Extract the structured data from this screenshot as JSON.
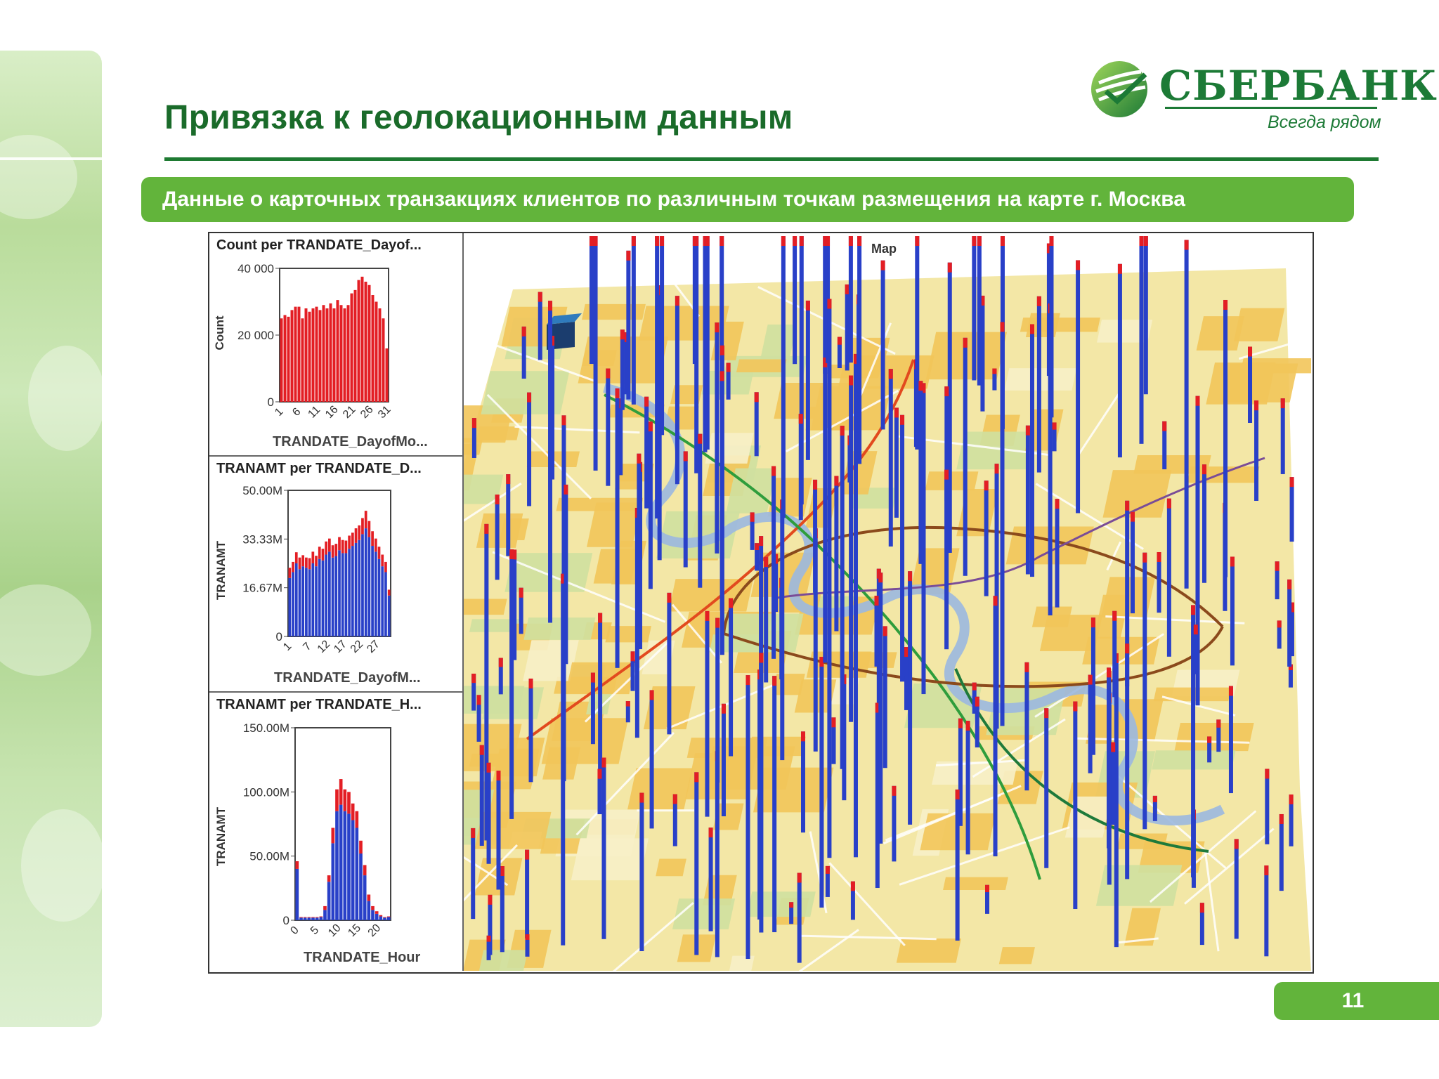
{
  "slide": {
    "title": "Привязка к геолокационным данным",
    "subtitle": "Данные о карточных транзакциях клиентов по различным точкам размещения на карте г. Москва",
    "page_number": "11"
  },
  "logo": {
    "name": "СБЕРБАНК",
    "tagline": "Всегда рядом"
  },
  "colors": {
    "brand_green": "#1e7a32",
    "banner_green": "#62b43b",
    "bar_red": "#e31e24",
    "bar_blue": "#2940c8"
  },
  "chart_data": [
    {
      "type": "bar",
      "title": "Count per TRANDATE_Dayof...",
      "xlabel": "TRANDATE_DayofMo...",
      "ylabel": "Count",
      "ylim": [
        0,
        40000
      ],
      "y_ticks": [
        "0",
        "20 000",
        "40 000"
      ],
      "x_ticks": [
        "1",
        "6",
        "11",
        "16",
        "21",
        "26",
        "31"
      ],
      "categories": [
        1,
        2,
        3,
        4,
        5,
        6,
        7,
        8,
        9,
        10,
        11,
        12,
        13,
        14,
        15,
        16,
        17,
        18,
        19,
        20,
        21,
        22,
        23,
        24,
        25,
        26,
        27,
        28,
        29,
        30,
        31
      ],
      "values": [
        25000,
        26000,
        25500,
        27500,
        28500,
        28500,
        25000,
        28000,
        27000,
        28000,
        28500,
        27500,
        29000,
        28000,
        29500,
        28000,
        30500,
        29000,
        28000,
        29000,
        32500,
        33500,
        36500,
        37500,
        36000,
        35000,
        32000,
        30000,
        28000,
        25000,
        16000
      ]
    },
    {
      "type": "bar",
      "title": "TRANAMT  per TRANDATE_D...",
      "xlabel": "TRANDATE_DayofM...",
      "ylabel": "TRANAMT",
      "ylim": [
        0,
        50000000
      ],
      "y_ticks": [
        "0",
        "16.67M",
        "33.33M",
        "50.00M"
      ],
      "x_ticks": [
        "1",
        "7",
        "12",
        "17",
        "22",
        "27"
      ],
      "categories": [
        1,
        2,
        3,
        4,
        5,
        6,
        7,
        8,
        9,
        10,
        11,
        12,
        13,
        14,
        15,
        16,
        17,
        18,
        19,
        20,
        21,
        22,
        23,
        24,
        25,
        26,
        27,
        28,
        29,
        30,
        31
      ],
      "series": [
        {
          "name": "blue",
          "values": [
            20000000,
            22000000,
            25000000,
            23000000,
            24000000,
            23500000,
            23000000,
            25000000,
            24000000,
            26500000,
            26000000,
            28000000,
            29000000,
            27000000,
            27500000,
            29500000,
            28500000,
            28500000,
            30000000,
            31000000,
            32000000,
            33000000,
            35000000,
            37000000,
            34000000,
            31000000,
            29000000,
            26500000,
            24000000,
            22000000,
            14000000
          ]
        },
        {
          "name": "red",
          "values": [
            3500000,
            3500000,
            3800000,
            4000000,
            3800000,
            3500000,
            3800000,
            4000000,
            3600000,
            4200000,
            4000000,
            4500000,
            4500000,
            4200000,
            4200000,
            4500000,
            4500000,
            4300000,
            4500000,
            4500000,
            5000000,
            5000000,
            5500000,
            6000000,
            5500000,
            5000000,
            4500000,
            4200000,
            4000000,
            3500000,
            2000000
          ]
        }
      ]
    },
    {
      "type": "bar",
      "title": "TRANAMT  per TRANDATE_H...",
      "xlabel": "TRANDATE_Hour",
      "ylabel": "TRANAMT",
      "ylim": [
        0,
        150000000
      ],
      "y_ticks": [
        "0",
        "50.00M",
        "100.00M",
        "150.00M"
      ],
      "x_ticks": [
        "0",
        "5",
        "10",
        "15",
        "20"
      ],
      "categories": [
        0,
        1,
        2,
        3,
        4,
        5,
        6,
        7,
        8,
        9,
        10,
        11,
        12,
        13,
        14,
        15,
        16,
        17,
        18,
        19,
        20,
        21,
        22,
        23
      ],
      "series": [
        {
          "name": "blue",
          "values": [
            40000000,
            2000000,
            2000000,
            2000000,
            2000000,
            2000000,
            2500000,
            8000000,
            30000000,
            60000000,
            85000000,
            90000000,
            85000000,
            83000000,
            78000000,
            72000000,
            52000000,
            35000000,
            15000000,
            8000000,
            5000000,
            3000000,
            2000000,
            2500000
          ]
        },
        {
          "name": "red",
          "values": [
            6000000,
            500000,
            500000,
            500000,
            500000,
            500000,
            500000,
            3000000,
            5000000,
            12000000,
            17000000,
            20000000,
            17000000,
            17000000,
            13000000,
            13000000,
            10000000,
            8000000,
            5000000,
            3000000,
            2000000,
            1000000,
            500000,
            500000
          ]
        }
      ]
    }
  ],
  "map": {
    "title": "Map"
  }
}
